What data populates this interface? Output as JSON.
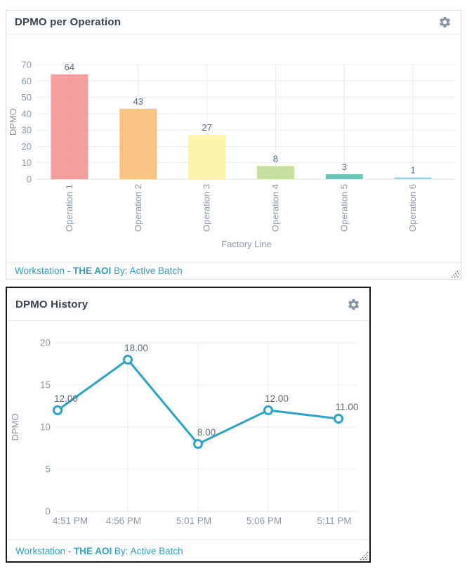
{
  "panels": [
    {
      "title": "DPMO per Operation",
      "footer": {
        "prefix": "Workstation - ",
        "highlight": "THE AOI",
        "suffix": " By: Active Batch"
      },
      "icons": {
        "action": "gear-icon",
        "corner": "resize-grip-icon"
      }
    },
    {
      "title": "DPMO History",
      "footer": {
        "prefix": "Workstation - ",
        "highlight": "THE AOI",
        "suffix": " By: Active Batch"
      },
      "icons": {
        "action": "gear-icon",
        "corner": "resize-grip-icon"
      }
    }
  ],
  "colors": {
    "title_text": "#3a424c",
    "footer_text": "#2f9fc3",
    "axis_text": "#8b98a9",
    "value_label_text": "#5c6b7c",
    "gridline": "#ececec",
    "axis_line": "#e0e0e0",
    "panel_border": "#d9d9d9",
    "selected_panel_border": "#161616",
    "gear_icon": "#8593a6",
    "line_series": "#2ba4c8"
  },
  "chart_data": [
    {
      "type": "bar",
      "title": "DPMO per Operation",
      "categories": [
        "Operation 1",
        "Operation 2",
        "Operation 3",
        "Operation 4",
        "Operation 5",
        "Operation 6"
      ],
      "values": [
        64,
        43,
        27,
        8,
        3,
        1
      ],
      "bar_colors": [
        "#f2918f",
        "#f8bb72",
        "#faf2a1",
        "#bedc92",
        "#5abcac",
        "#87c4ea"
      ],
      "xlabel": "Factory Line",
      "ylabel": "DPMO",
      "ylim": [
        0,
        70
      ],
      "yticks": [
        0,
        10,
        20,
        30,
        40,
        50,
        60,
        70
      ],
      "grid": true,
      "legend": "none"
    },
    {
      "type": "line",
      "title": "DPMO History",
      "x": [
        "4:51 PM",
        "4:56 PM",
        "5:01 PM",
        "5:06 PM",
        "5:11 PM"
      ],
      "values": [
        12,
        18,
        8,
        12,
        11
      ],
      "point_labels": [
        "12.00",
        "18.00",
        "8.00",
        "12.00",
        "11.00"
      ],
      "marker": "open-circle",
      "line_color": "#2ba4c8",
      "xlabel": "",
      "ylabel": "DPMO",
      "ylim": [
        0,
        20
      ],
      "yticks": [
        0,
        5,
        10,
        15,
        20
      ],
      "grid": true,
      "legend": "none"
    }
  ]
}
